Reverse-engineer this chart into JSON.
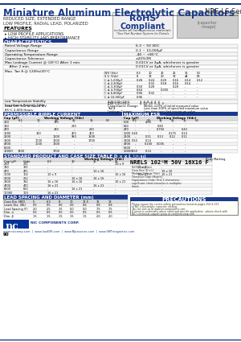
{
  "title": "Miniature Aluminum Electrolytic Capacitors",
  "series": "NRE-LS Series",
  "subtitle_lines": [
    "REDUCED SIZE, EXTENDED RANGE",
    "LOW PROFILE, RADIAL LEAD, POLARIZED"
  ],
  "features_header": "FEATURES",
  "features": [
    "LOW PROFILE APPLICATIONS",
    "HIGH STABILITY AND PERFORMANCE"
  ],
  "rohs_text": "RoHS\nCompliant",
  "rohs_sub": "includes all homogeneous materials",
  "rohs_note": "*See Part Number System for Details",
  "char_header": "CHARACTERISTICS",
  "ripple_header": "PERMISSIBLE RIPPLE CURRENT",
  "ripple_sub": "(mA rms AT 120Hz AND 85°C)",
  "esr_header": "MAXIMUM ESR",
  "esr_sub": "(Ω AT 120Hz 120Hz/20°C)",
  "standard_header": "STANDARD PRODUCT AND CASE SIZE TABLE D × x L (mm)",
  "lead_header": "LEAD SPACING AND DIAMETER (mm)",
  "part_header": "PART NUMBER SYSTEM",
  "part_example": "NRELS 102 M 50V 16X16 F",
  "precautions_header": "PRECAUTIONS",
  "footer_company": "NIC COMPONENTS CORP.",
  "footer_urls": "www.niccomp.com  |  www.lowESR.com  |  www.NIpassives.com  |  www.SMTmagnetics.com",
  "footer_page": "90",
  "bg_color": "#ffffff",
  "title_color": "#1a3a8c",
  "header_bg": "#003399",
  "table_line_color": "#aaaaaa",
  "blue_dark": "#1a3a8c",
  "blue_mid": "#4466cc",
  "gray_bg": "#e8e8e8"
}
